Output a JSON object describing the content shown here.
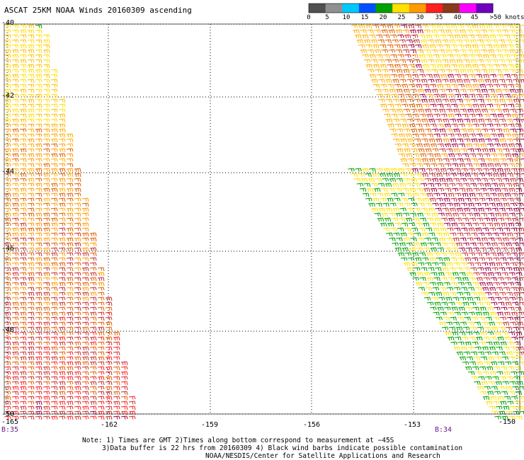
{
  "header": {
    "title": "ASCAT 25KM NOAA Winds 20160309 ascending"
  },
  "legend": {
    "bins": [
      {
        "label": "0",
        "color": "#505050"
      },
      {
        "label": "5",
        "color": "#909090"
      },
      {
        "label": "10",
        "color": "#00c8ff"
      },
      {
        "label": "15",
        "color": "#0050ff"
      },
      {
        "label": "20",
        "color": "#00a000"
      },
      {
        "label": "25",
        "color": "#ffe000"
      },
      {
        "label": "30",
        "color": "#ff9a00"
      },
      {
        "label": "35",
        "color": "#ff2020"
      },
      {
        "label": "40",
        "color": "#8a3a1a"
      },
      {
        "label": "45",
        "color": "#ff00ff"
      },
      {
        "label": ">50 knots",
        "color": "#7000c0"
      }
    ]
  },
  "axes": {
    "lat_labels": [
      "-40",
      "-42",
      "-44",
      "-46",
      "-48",
      "-50"
    ],
    "lon_labels": [
      "-165",
      "-162",
      "-159",
      "-156",
      "-153",
      "-150"
    ]
  },
  "times": {
    "left_pass": "B:35",
    "right_pass": "B:34"
  },
  "footer": {
    "line1": "Note: 1) Times are GMT 2)Times along bottom correspond to measurement at −45S",
    "line2": "3)Data buffer is 22 hrs from 20160309 4) Black wind barbs indicate possible contamination",
    "line3": "NOAA/NESDIS/Center for Satellite Applications and Research"
  },
  "colors": {
    "grid": "#000000",
    "frame": "#000000",
    "time_label": "#6a1a8a"
  }
}
